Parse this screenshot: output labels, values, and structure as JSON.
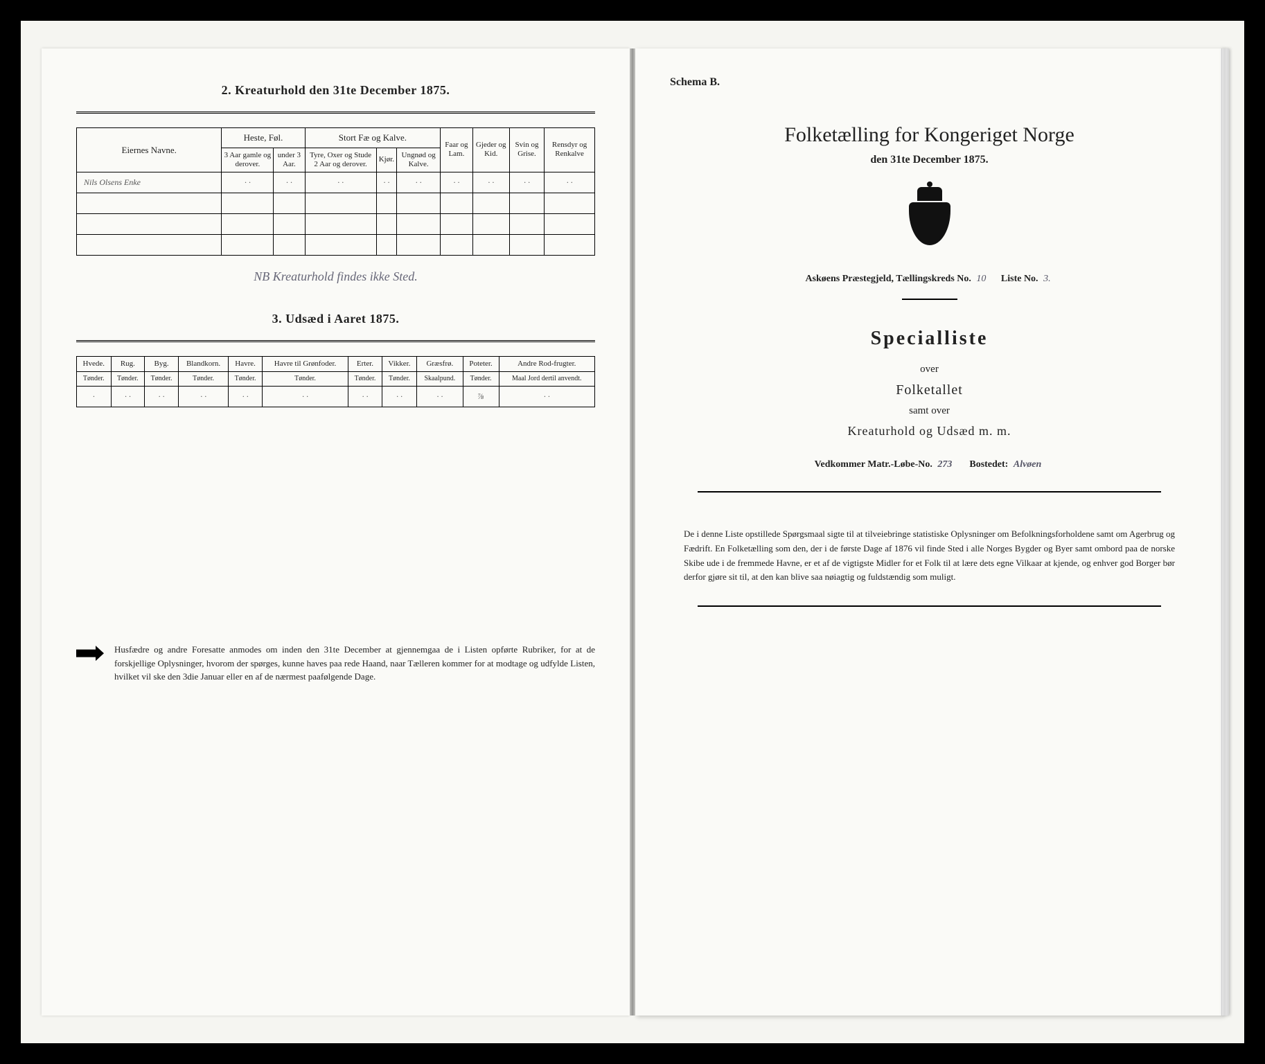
{
  "left": {
    "section2_title": "2. Kreaturhold den 31te December 1875.",
    "table2": {
      "eiernes": "Eiernes Navne.",
      "heste_group": "Heste, Føl.",
      "heste_cols": [
        "3 Aar gamle og derover.",
        "under 3 Aar."
      ],
      "fae_group": "Stort Fæ og Kalve.",
      "fae_cols": [
        "Tyre, Oxer og Stude 2 Aar og derover.",
        "Kjør.",
        "Ungnød og Kalve."
      ],
      "faar": "Faar og Lam.",
      "gjeder": "Gjeder og Kid.",
      "svin": "Svin og Grise.",
      "rensdyr": "Rensdyr og Renkalve",
      "row1_name": "Nils Olsens Enke",
      "row1_vals": [
        "· ·",
        "· ·",
        "· ·",
        "· ·",
        "· ·",
        "· ·",
        "· ·",
        "· ·",
        "· ·"
      ]
    },
    "hand_note": "NB   Kreaturhold findes ikke Sted.",
    "section3_title": "3. Udsæd i Aaret 1875.",
    "table3": {
      "cols": [
        {
          "h": "Hvede.",
          "s": "Tønder."
        },
        {
          "h": "Rug.",
          "s": "Tønder."
        },
        {
          "h": "Byg.",
          "s": "Tønder."
        },
        {
          "h": "Blandkorn.",
          "s": "Tønder."
        },
        {
          "h": "Havre.",
          "s": "Tønder."
        },
        {
          "h": "Havre til Grønfoder.",
          "s": "Tønder."
        },
        {
          "h": "Erter.",
          "s": "Tønder."
        },
        {
          "h": "Vikker.",
          "s": "Tønder."
        },
        {
          "h": "Græsfrø.",
          "s": "Skaalpund."
        },
        {
          "h": "Poteter.",
          "s": "Tønder."
        },
        {
          "h": "Andre Rod-frugter.",
          "s": "Maal Jord dertil anvendt."
        }
      ],
      "row": [
        "·",
        "· ·",
        "· ·",
        "· ·",
        "· ·",
        "· ·",
        "· ·",
        "· ·",
        "· ·",
        "⅞",
        "· ·"
      ]
    },
    "footer_note": "Husfædre og andre Foresatte anmodes om inden den 31te December at gjennemgaa de i Listen opførte Rubriker, for at de forskjellige Oplysninger, hvorom der spørges, kunne haves paa rede Haand, naar Tælleren kommer for at modtage og udfylde Listen, hvilket vil ske den 3die Januar eller en af de nærmest paafølgende Dage."
  },
  "right": {
    "schema": "Schema B.",
    "title": "Folketælling for Kongeriget Norge",
    "subtitle": "den 31te December 1875.",
    "parish_label": "Askøens Præstegjeld,  Tællingskreds No.",
    "parish_no": "10",
    "liste_label": "Liste No.",
    "liste_no": "3.",
    "spec_title": "Specialliste",
    "over": "over",
    "folketallet": "Folketallet",
    "samtover": "samt over",
    "kreatur": "Kreaturhold og Udsæd m. m.",
    "matr_label": "Vedkommer Matr.-Løbe-No.",
    "matr_no": "273",
    "bostedet_label": "Bostedet:",
    "bostedet": "Alvøen",
    "bottom": "De i denne Liste opstillede Spørgsmaal sigte til at tilveiebringe statistiske Oplysninger om Befolkningsforholdene samt om Agerbrug og Fædrift. En Folketælling som den, der i de første Dage af 1876 vil finde Sted i alle Norges Bygder og Byer samt ombord paa de norske Skibe ude i de fremmede Havne, er et af de vigtigste Midler for et Folk til at lære dets egne Vilkaar at kjende, og enhver god Borger bør derfor gjøre sit til, at den kan blive saa nøiagtig og fuldstændig som muligt."
  }
}
